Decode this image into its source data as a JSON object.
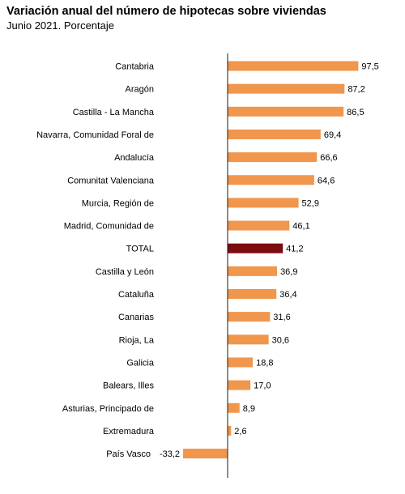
{
  "title": "Variación anual del número de hipotecas sobre viviendas",
  "subtitle": "Junio 2021. Porcentaje",
  "colors": {
    "bar": "#F0964D",
    "highlight": "#7B0C10",
    "axis": "#1a1a1a"
  },
  "chart_data": {
    "type": "bar",
    "orientation": "horizontal",
    "categories": [
      "Cantabria",
      "Aragón",
      "Castilla - La Mancha",
      "Navarra, Comunidad Foral de",
      "Andalucía",
      "Comunitat Valenciana",
      "Murcia, Región de",
      "Madrid, Comunidad de",
      "TOTAL",
      "Castilla y León",
      "Cataluña",
      "Canarias",
      "Rioja, La",
      "Galicia",
      "Balears, Illes",
      "Asturias, Principado de",
      "Extremadura",
      "País Vasco"
    ],
    "values": [
      97.5,
      87.2,
      86.5,
      69.4,
      66.6,
      64.6,
      52.9,
      46.1,
      41.2,
      36.9,
      36.4,
      31.6,
      30.6,
      18.8,
      17.0,
      8.9,
      2.6,
      -33.2
    ],
    "value_labels": [
      "97,5",
      "87,2",
      "86,5",
      "69,4",
      "66,6",
      "64,6",
      "52,9",
      "46,1",
      "41,2",
      "36,9",
      "36,4",
      "31,6",
      "30,6",
      "18,8",
      "17,0",
      "8,9",
      "2,6",
      "-33,2"
    ],
    "highlight_category": "TOTAL",
    "xlim": [
      -33.2,
      97.5
    ],
    "grid": false,
    "legend": "none"
  }
}
